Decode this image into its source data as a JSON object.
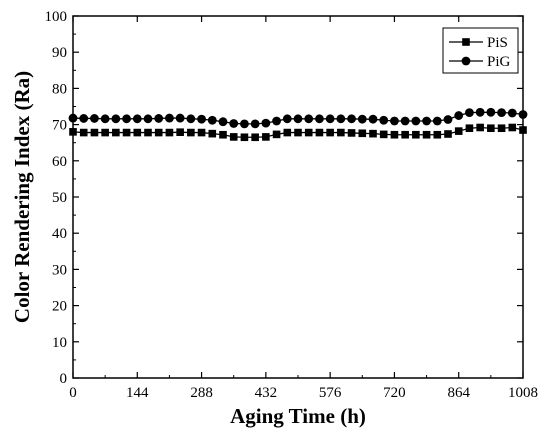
{
  "chart_data": {
    "type": "line",
    "xlabel": "Aging Time (h)",
    "ylabel": "Color Rendering Index (Ra)",
    "xlim": [
      0,
      1008
    ],
    "ylim": [
      0,
      100
    ],
    "xticks": [
      0,
      144,
      288,
      432,
      576,
      720,
      864,
      1008
    ],
    "yticks": [
      0,
      10,
      20,
      30,
      40,
      50,
      60,
      70,
      80,
      90,
      100
    ],
    "grid": false,
    "legend_position": "top-right",
    "x": [
      0,
      24,
      48,
      72,
      96,
      120,
      144,
      168,
      192,
      216,
      240,
      264,
      288,
      312,
      336,
      360,
      384,
      408,
      432,
      456,
      480,
      504,
      528,
      552,
      576,
      600,
      624,
      648,
      672,
      696,
      720,
      744,
      768,
      792,
      816,
      840,
      864,
      888,
      912,
      936,
      960,
      984,
      1008
    ],
    "series": [
      {
        "name": "PiS",
        "marker": "square",
        "color": "#000000",
        "values": [
          68.0,
          67.8,
          67.8,
          67.8,
          67.8,
          67.8,
          67.8,
          67.8,
          67.8,
          67.8,
          67.9,
          67.8,
          67.8,
          67.5,
          67.2,
          66.6,
          66.5,
          66.5,
          66.6,
          67.3,
          67.8,
          67.8,
          67.8,
          67.8,
          67.8,
          67.8,
          67.7,
          67.6,
          67.5,
          67.3,
          67.2,
          67.2,
          67.2,
          67.2,
          67.2,
          67.4,
          68.2,
          69.0,
          69.2,
          69.0,
          69.0,
          69.2,
          68.5
        ]
      },
      {
        "name": "PiG",
        "marker": "circle",
        "color": "#000000",
        "values": [
          71.8,
          71.7,
          71.7,
          71.6,
          71.6,
          71.6,
          71.6,
          71.6,
          71.7,
          71.8,
          71.8,
          71.6,
          71.5,
          71.2,
          70.8,
          70.3,
          70.2,
          70.2,
          70.4,
          71.0,
          71.6,
          71.6,
          71.6,
          71.6,
          71.6,
          71.6,
          71.6,
          71.5,
          71.5,
          71.2,
          71.0,
          71.0,
          71.0,
          71.0,
          71.0,
          71.4,
          72.5,
          73.3,
          73.4,
          73.4,
          73.3,
          73.2,
          72.8
        ]
      }
    ]
  }
}
